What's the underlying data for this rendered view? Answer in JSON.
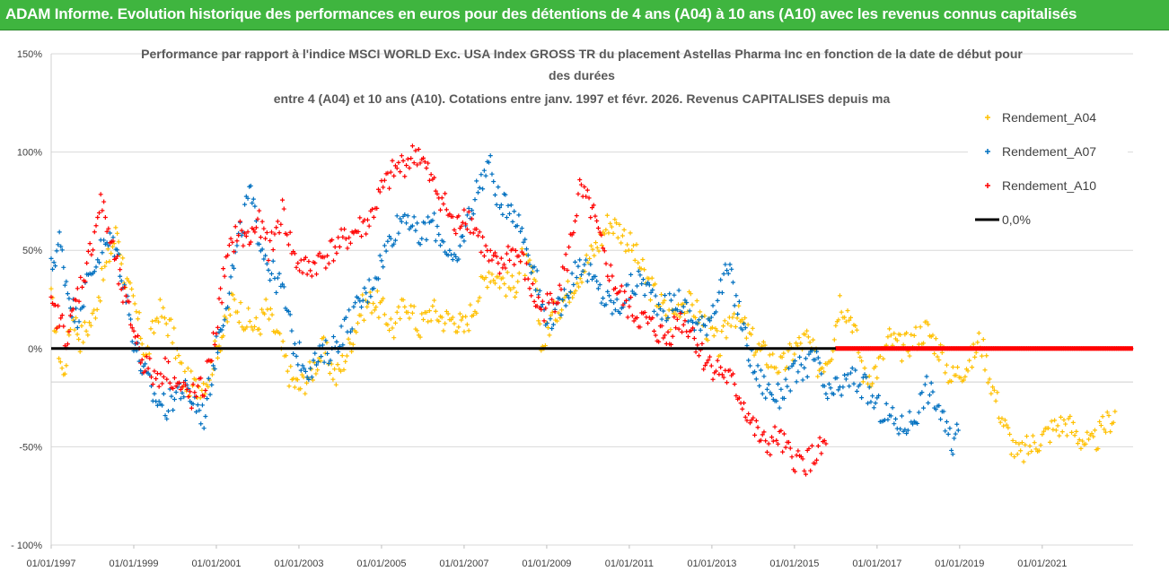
{
  "banner": {
    "title": "ADAM Informe. Evolution historique des performances en euros pour des détentions de 4 ans (A04) à 10 ans (A10) avec les revenus connus capitalisés"
  },
  "colors": {
    "banner_bg": "#3fb53f",
    "A04": "#ffc000",
    "A07": "#0070c0",
    "A10": "#ff0000",
    "zero_line": "#000000",
    "gridline": "#d9d9d9"
  },
  "chart_data": {
    "type": "scatter",
    "title_lines": [
      "Performance par rapport à l'indice MSCI WORLD Exc. USA Index GROSS TR  du placement Astellas Pharma Inc en fonction de la date de début pour",
      "des durées",
      "entre 4 (A04) et 10 ans (A10).  Cotations entre janv. 1997 et févr. 2026. Revenus CAPITALISES depuis ma"
    ],
    "xlabel": "",
    "ylabel": "",
    "x_range": [
      1997.0,
      2023.2
    ],
    "ylim": [
      -100,
      150
    ],
    "y_ticks": [
      150,
      100,
      50,
      0,
      -50,
      -100
    ],
    "y_tick_labels": [
      "150%",
      "100%",
      "50%",
      "0%",
      "-50%",
      "- 100%"
    ],
    "x_ticks": [
      1997,
      1999,
      2001,
      2003,
      2005,
      2007,
      2009,
      2011,
      2013,
      2015,
      2017,
      2019,
      2021
    ],
    "x_tick_labels": [
      "01/01/1997",
      "01/01/1999",
      "01/01/2001",
      "01/01/2003",
      "01/01/2005",
      "01/01/2007",
      "01/01/2009",
      "01/01/2011",
      "01/01/2013",
      "01/01/2015",
      "01/01/2017",
      "01/01/2019",
      "01/01/2021"
    ],
    "horizontal_gridlines": true,
    "legend_position": "top-right",
    "legend": [
      {
        "label": "Rendement_A04",
        "series": "A04",
        "kind": "marker"
      },
      {
        "label": "Rendement_A07",
        "series": "A07",
        "kind": "marker"
      },
      {
        "label": "Rendement_A10",
        "series": "A10",
        "kind": "marker"
      },
      {
        "label": "0,0%",
        "series": "zero",
        "kind": "line"
      }
    ],
    "series": [
      {
        "name": "Rendement_A04",
        "key": "A04",
        "x": [
          1997.0,
          1997.3,
          1997.5,
          1997.7,
          1998.0,
          1998.3,
          1998.6,
          1998.8,
          1999.1,
          1999.3,
          1999.6,
          1999.9,
          2000.2,
          2000.5,
          2000.8,
          2001.0,
          2001.2,
          2001.4,
          2001.7,
          2002.0,
          2002.2,
          2002.5,
          2002.8,
          2003.0,
          2003.3,
          2003.6,
          2003.9,
          2004.2,
          2004.5,
          2004.8,
          2005.0,
          2005.3,
          2005.6,
          2005.9,
          2006.2,
          2006.5,
          2006.8,
          2007.0,
          2007.3,
          2007.6,
          2007.9,
          2008.2,
          2008.4,
          2008.7,
          2008.9,
          2009.1,
          2009.4,
          2009.7,
          2010.0,
          2010.3,
          2010.5,
          2010.8,
          2011.1,
          2011.4,
          2011.7,
          2012.0,
          2012.3,
          2012.6,
          2012.9,
          2013.2,
          2013.5,
          2013.8,
          2014.1,
          2014.4,
          2014.7,
          2015.0,
          2015.3,
          2015.6,
          2015.9,
          2016.1,
          2016.4,
          2016.7,
          2017.0,
          2017.3,
          2017.6,
          2017.9,
          2018.2,
          2018.5,
          2018.8,
          2019.1,
          2019.3,
          2019.5,
          2019.8,
          2020.1,
          2020.4,
          2020.7,
          2021.0,
          2021.3,
          2021.6,
          2021.9,
          2022.2,
          2022.5,
          2022.8
        ],
        "y": [
          25,
          -15,
          20,
          5,
          15,
          40,
          60,
          35,
          15,
          -5,
          20,
          10,
          -15,
          -20,
          -15,
          0,
          10,
          25,
          15,
          10,
          20,
          5,
          -15,
          -20,
          -12,
          0,
          -15,
          0,
          20,
          25,
          20,
          10,
          25,
          10,
          20,
          15,
          15,
          10,
          25,
          40,
          35,
          30,
          45,
          35,
          0,
          15,
          25,
          35,
          45,
          55,
          65,
          60,
          50,
          35,
          25,
          15,
          25,
          20,
          10,
          0,
          20,
          10,
          0,
          -5,
          -10,
          0,
          5,
          -10,
          0,
          25,
          15,
          -15,
          -10,
          5,
          0,
          5,
          10,
          0,
          -15,
          -10,
          -5,
          5,
          -20,
          -40,
          -55,
          -50,
          -45,
          -40,
          -38,
          -45,
          -50,
          -40,
          -32
        ]
      },
      {
        "name": "Rendement_A07",
        "key": "A07",
        "x": [
          1997.0,
          1997.2,
          1997.4,
          1997.6,
          1997.9,
          1998.2,
          1998.5,
          1998.7,
          1999.0,
          1999.2,
          1999.5,
          1999.8,
          2000.1,
          2000.4,
          2000.7,
          2001.0,
          2001.2,
          2001.5,
          2001.8,
          2002.0,
          2002.3,
          2002.6,
          2002.9,
          2003.2,
          2003.5,
          2003.8,
          2004.1,
          2004.4,
          2004.7,
          2005.0,
          2005.3,
          2005.6,
          2005.9,
          2006.2,
          2006.5,
          2006.8,
          2007.0,
          2007.3,
          2007.6,
          2007.9,
          2008.1,
          2008.4,
          2008.7,
          2008.9,
          2009.2,
          2009.5,
          2009.8,
          2010.1,
          2010.4,
          2010.7,
          2011.0,
          2011.3,
          2011.6,
          2011.9,
          2012.2,
          2012.5,
          2012.8,
          2013.1,
          2013.4,
          2013.7,
          2014.0,
          2014.3,
          2014.6,
          2014.9,
          2015.2,
          2015.5,
          2015.8,
          2016.1,
          2016.4,
          2016.7,
          2017.0,
          2017.3,
          2017.6,
          2017.9,
          2018.2,
          2018.5,
          2018.8,
          2019.0
        ],
        "y": [
          40,
          55,
          30,
          15,
          35,
          50,
          55,
          40,
          5,
          -10,
          -25,
          -30,
          -20,
          -25,
          -35,
          0,
          20,
          50,
          80,
          60,
          40,
          30,
          0,
          -10,
          -5,
          0,
          10,
          20,
          30,
          45,
          60,
          70,
          55,
          65,
          55,
          40,
          60,
          80,
          95,
          70,
          75,
          60,
          40,
          20,
          15,
          30,
          45,
          35,
          25,
          20,
          30,
          35,
          25,
          20,
          25,
          15,
          10,
          25,
          40,
          15,
          -10,
          -20,
          -25,
          -15,
          -10,
          -5,
          -25,
          -20,
          -15,
          -20,
          -30,
          -35,
          -40,
          -35,
          -20,
          -30,
          -50,
          -40
        ]
      },
      {
        "name": "Rendement_A10",
        "key": "A10",
        "x": [
          1997.0,
          1997.2,
          1997.4,
          1997.6,
          1997.9,
          1998.2,
          1998.5,
          1998.7,
          1999.0,
          1999.2,
          1999.5,
          1999.8,
          2000.1,
          2000.4,
          2000.7,
          2001.0,
          2001.2,
          2001.5,
          2001.8,
          2002.0,
          2002.3,
          2002.6,
          2002.9,
          2003.2,
          2003.5,
          2003.8,
          2004.1,
          2004.4,
          2004.7,
          2005.0,
          2005.3,
          2005.6,
          2005.9,
          2006.2,
          2006.5,
          2006.8,
          2007.0,
          2007.3,
          2007.6,
          2007.9,
          2008.1,
          2008.4,
          2008.7,
          2008.9,
          2009.2,
          2009.5,
          2009.8,
          2010.1,
          2010.4,
          2010.7,
          2011.0,
          2011.3,
          2011.6,
          2011.9,
          2012.2,
          2012.5,
          2012.8,
          2013.1,
          2013.4,
          2013.7,
          2014.0,
          2014.3,
          2014.6,
          2014.9,
          2015.2,
          2015.5,
          2015.8
        ],
        "y": [
          20,
          15,
          5,
          25,
          45,
          75,
          50,
          30,
          10,
          -5,
          -15,
          -10,
          -20,
          -25,
          -20,
          10,
          40,
          60,
          55,
          65,
          50,
          70,
          45,
          40,
          45,
          50,
          55,
          60,
          65,
          80,
          90,
          95,
          100,
          85,
          75,
          60,
          70,
          60,
          45,
          40,
          50,
          45,
          25,
          20,
          25,
          45,
          80,
          70,
          45,
          30,
          20,
          15,
          10,
          5,
          15,
          10,
          -5,
          -10,
          -15,
          -25,
          -40,
          -50,
          -45,
          -55,
          -58,
          -55,
          -48
        ]
      },
      {
        "name": "Rendement_A10 (no data, flat at 0)",
        "key": "A10",
        "x": [
          2016.0,
          2016.4,
          2016.8,
          2017.2,
          2017.6,
          2018.0,
          2018.4,
          2018.8,
          2019.2,
          2019.6,
          2020.0,
          2020.4,
          2020.8,
          2021.2,
          2021.6,
          2022.0,
          2022.4,
          2022.8,
          2023.2
        ],
        "y": [
          0,
          0,
          0,
          0,
          0,
          0,
          0,
          0,
          0,
          0,
          0,
          0,
          0,
          0,
          0,
          0,
          0,
          0,
          0
        ]
      }
    ]
  }
}
